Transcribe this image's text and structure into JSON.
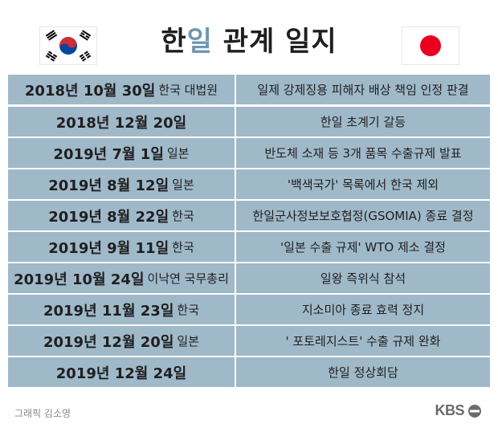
{
  "title": {
    "part1": "한",
    "accent": "일",
    "part2": " 관계 일지"
  },
  "flags": {
    "left": "korea-flag-icon",
    "right": "japan-flag-icon"
  },
  "timeline": [
    {
      "date": "2018년 10월 30일",
      "entity": "한국 대법원",
      "event": "일제 강제징용 피해자 배상 책임 인정 판결"
    },
    {
      "date": "2018년 12월 20일",
      "entity": "",
      "event": "한일 초계기 갈등"
    },
    {
      "date": "2019년 7월 1일",
      "entity": "일본",
      "event": "반도체 소재 등 3개 품목 수출규제 발표"
    },
    {
      "date": "2019년 8월 12일",
      "entity": "일본",
      "event": "'백색국가' 목록에서 한국 제외"
    },
    {
      "date": "2019년 8월 22일",
      "entity": "한국",
      "event": "한일군사정보보호협정(GSOMIA) 종료 결정"
    },
    {
      "date": "2019년 9월 11일",
      "entity": "한국",
      "event": "'일본 수출 규제' WTO 제소 결정"
    },
    {
      "date": "2019년 10월 24일",
      "entity": "이낙연 국무총리",
      "event": "일왕 즉위식 참석"
    },
    {
      "date": "2019년 11월 23일",
      "entity": "한국",
      "event": "지소미아 종료 효력 정지"
    },
    {
      "date": "2019년 12월 20일",
      "entity": "일본",
      "event": "' 포토레지스트' 수출 규제 완화"
    },
    {
      "date": "2019년 12월 24일",
      "entity": "",
      "event": "한일 정상회담"
    }
  ],
  "footer": {
    "credit": "그래픽 김소영",
    "logo": "KBS"
  },
  "colors": {
    "row_bg": "#9fb9c9",
    "accent": "#6d97b1",
    "korea_red": "#cd2e3a",
    "korea_blue": "#0047a0",
    "japan_red": "#e8001c"
  }
}
